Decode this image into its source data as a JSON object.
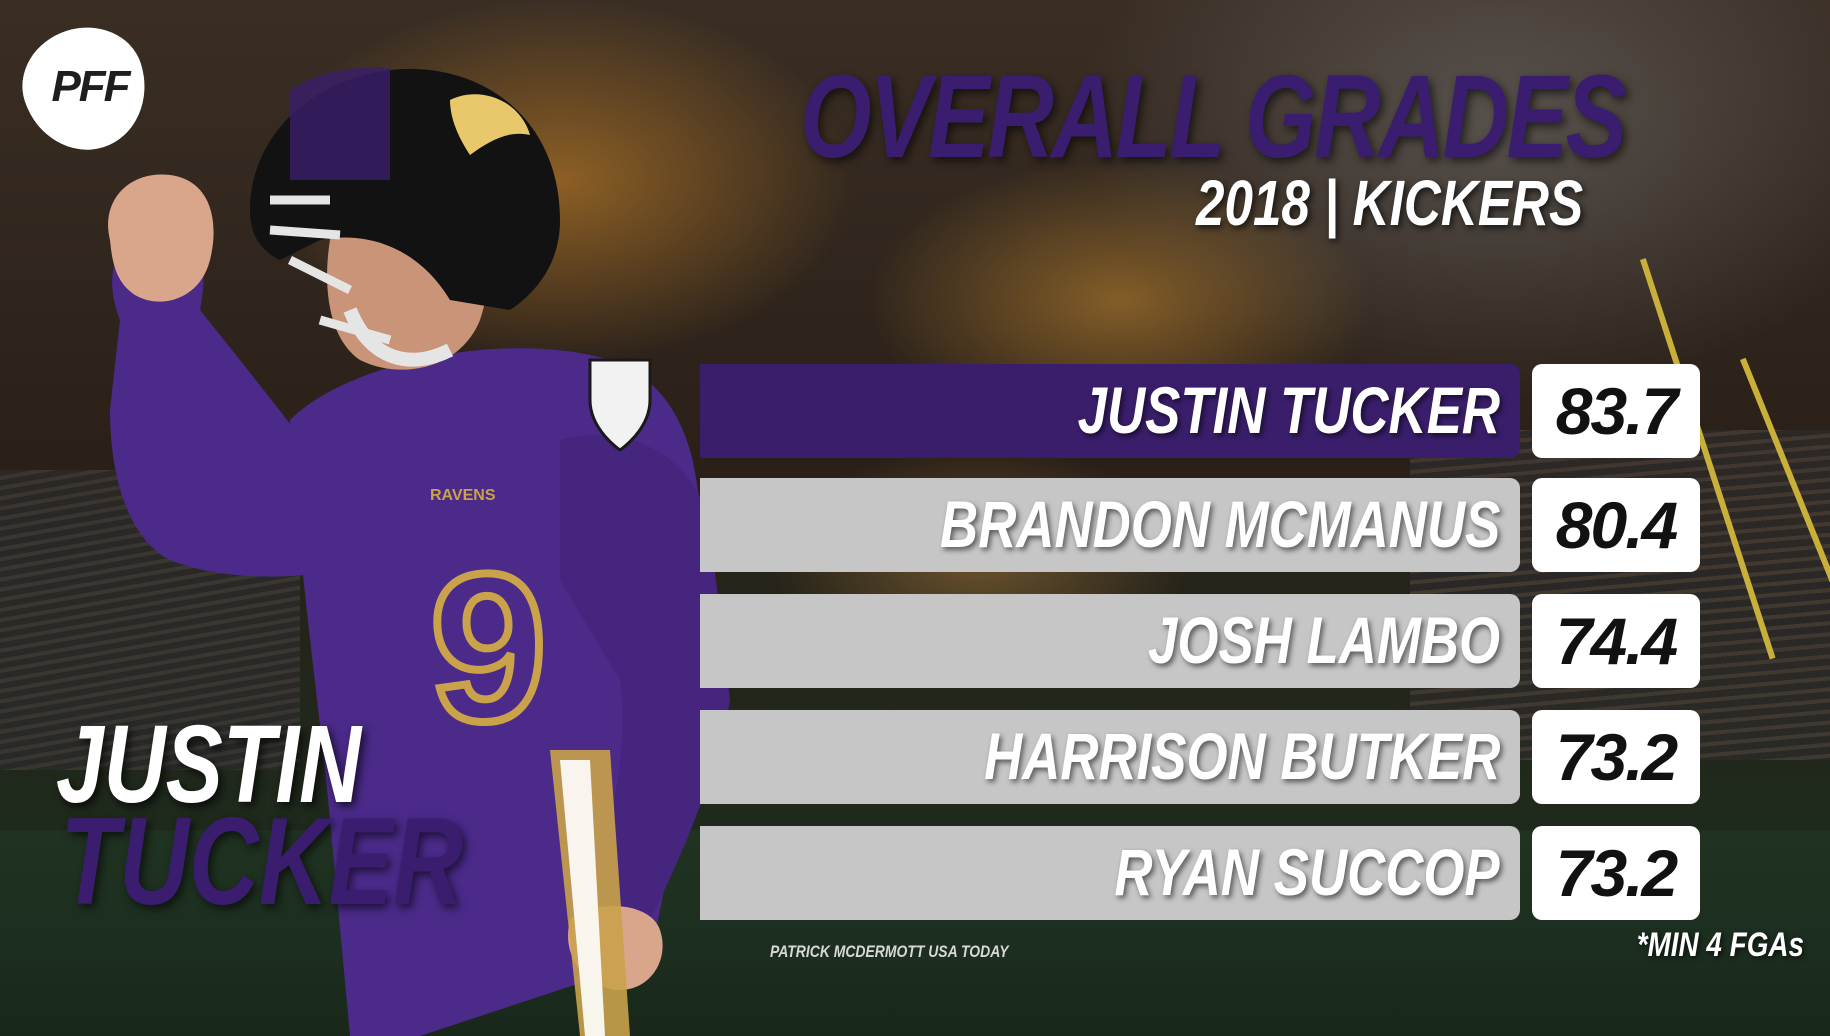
{
  "brand": {
    "logo_text": "PFF"
  },
  "header": {
    "title": "Overall Grades",
    "subtitle": "2018 | KICKERS"
  },
  "featured_player": {
    "first_name": "JUSTIN",
    "last_name": "TUCKER",
    "jersey_number": "9",
    "team_wordmark": "RAVENS"
  },
  "rankings": [
    {
      "name": "JUSTIN TUCKER",
      "grade": "83.7"
    },
    {
      "name": "BRANDON MCMANUS",
      "grade": "80.4"
    },
    {
      "name": "JOSH LAMBO",
      "grade": "74.4"
    },
    {
      "name": "HARRISON BUTKER",
      "grade": "73.2"
    },
    {
      "name": "RYAN SUCCOP",
      "grade": "73.2"
    }
  ],
  "footer": {
    "photo_credit": "PATRICK MCDERMOTT USA TODAY",
    "footnote": "*MIN 4 FGAs"
  },
  "colors": {
    "purple": "#3a1e6b",
    "bar_gray": "#c7c6c6",
    "white": "#ffffff",
    "gold": "#c9a24a"
  }
}
